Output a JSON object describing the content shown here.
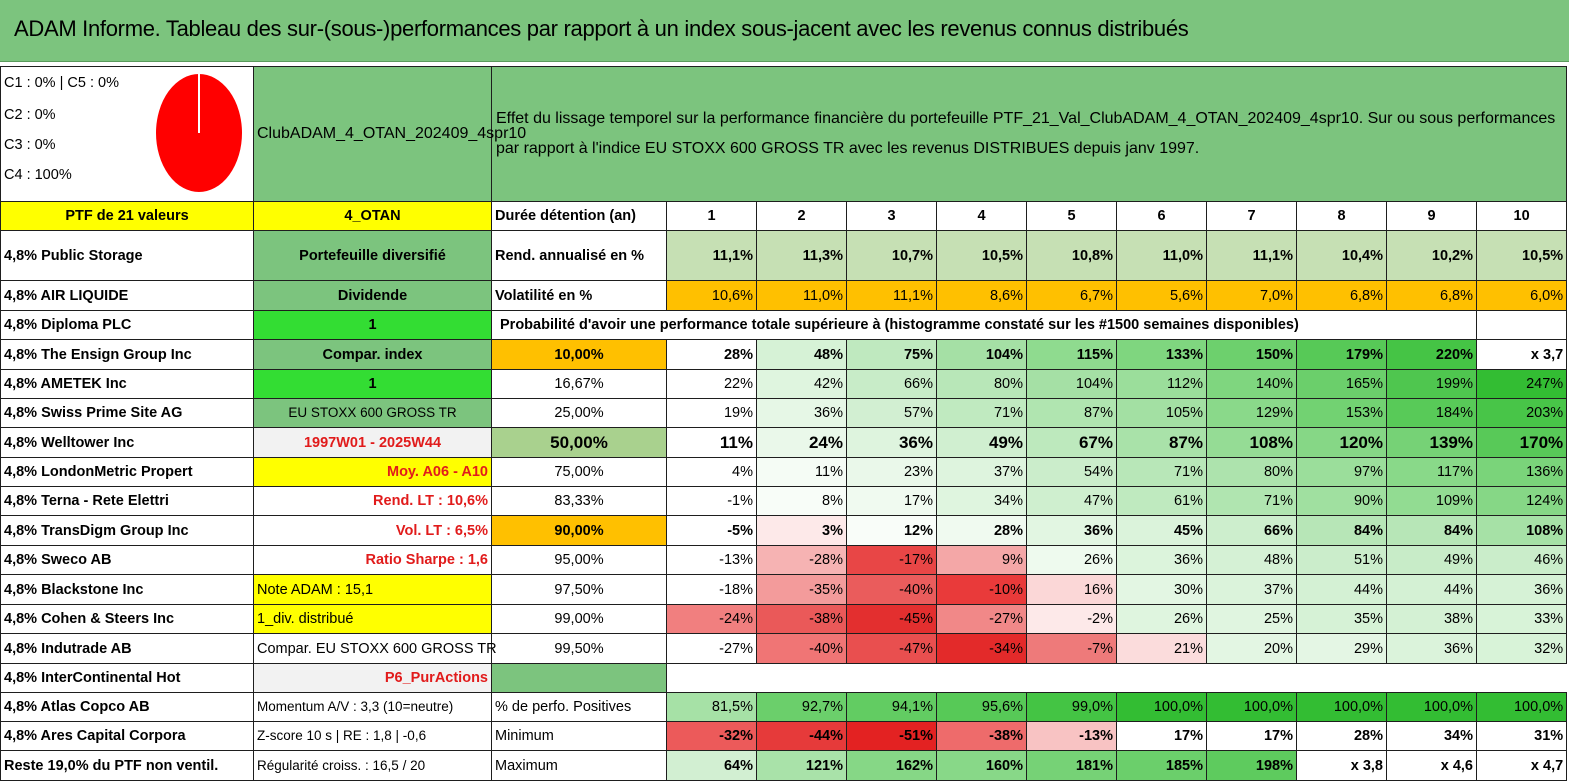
{
  "title": "ADAM Informe. Tableau des sur-(sous-)performances par rapport à un index sous-jacent avec les revenus connus distribués",
  "pie": {
    "legend": [
      "C1 : 0% | C5 : 0%",
      "C2 : 0%",
      "C3 : 0%",
      "C4 : 100%"
    ],
    "colors": {
      "fill": "#ff0000",
      "stroke": "#ffffff"
    }
  },
  "header": {
    "portfolio_name": "ClubADAM_4_OTAN_202409_4spr10",
    "description": "Effet du lissage temporel sur la performance financière du portefeuille PTF_21_Val_ClubADAM_4_OTAN_202409_4spr10. Sur ou sous performances par rapport à l'indice EU STOXX 600 GROSS TR avec les revenus DISTRIBUES depuis janv 1997."
  },
  "holdings": [
    "PTF de 21 valeurs",
    "4,8% Public Storage",
    "4,8% AIR LIQUIDE",
    "4,8% Diploma PLC",
    "4,8% The Ensign Group Inc",
    "4,8% AMETEK Inc",
    "4,8% Swiss Prime Site AG",
    "4,8% Welltower Inc",
    "4,8% LondonMetric Propert",
    "4,8% Terna - Rete Elettri",
    "4,8% TransDigm Group Inc",
    "4,8% Sweco AB",
    "4,8% Blackstone Inc",
    "4,8% Cohen & Steers Inc",
    "4,8% Indutrade AB",
    "4,8% InterContinental Hot",
    "4,8% Atlas Copco AB",
    "4,8% Ares Capital Corpora",
    "Reste 19,0% du PTF non ventil."
  ],
  "info": [
    "4_OTAN",
    "Portefeuille diversifié",
    "Dividende",
    "1",
    "Compar. index",
    "1",
    "EU STOXX 600 GROSS TR",
    "1997W01 - 2025W44",
    "Moy. A06 - A10",
    "Rend. LT : 10,6%",
    "Vol. LT : 6,5%",
    "Ratio Sharpe : 1,6",
    "Note ADAM : 15,1",
    "1_div. distribué",
    "Compar. EU STOXX 600 GROSS TR",
    "P6_PurActions",
    "Momentum A/V : 3,3 (10=neutre)",
    "Z-score 10 s | RE : 1,8 | -0,6",
    "Régularité croiss. : 16,5 / 20"
  ],
  "stats": {
    "duration_label": "Durée détention (an)",
    "years": [
      "1",
      "2",
      "3",
      "4",
      "5",
      "6",
      "7",
      "8",
      "9",
      "10"
    ],
    "rend_label": "Rend. annualisé en %",
    "rend": [
      "11,1%",
      "11,3%",
      "10,7%",
      "10,5%",
      "10,8%",
      "11,0%",
      "11,1%",
      "10,4%",
      "10,2%",
      "10,5%"
    ],
    "vol_label": "Volatilité en %",
    "vol": [
      "10,6%",
      "11,0%",
      "11,1%",
      "8,6%",
      "6,7%",
      "5,6%",
      "7,0%",
      "6,8%",
      "6,8%",
      "6,0%"
    ],
    "prob_title": "Probabilité d'avoir une performance totale supérieure à (histogramme constaté sur les #1500 semaines disponibles)"
  },
  "prob_rows": [
    {
      "label": "10,00%",
      "values": [
        "28%",
        "48%",
        "75%",
        "104%",
        "115%",
        "133%",
        "150%",
        "179%",
        "220%",
        "x 3,7"
      ]
    },
    {
      "label": "16,67%",
      "values": [
        "22%",
        "42%",
        "66%",
        "80%",
        "104%",
        "112%",
        "140%",
        "165%",
        "199%",
        "247%"
      ]
    },
    {
      "label": "25,00%",
      "values": [
        "19%",
        "36%",
        "57%",
        "71%",
        "87%",
        "105%",
        "129%",
        "153%",
        "184%",
        "203%"
      ]
    },
    {
      "label": "50,00%",
      "values": [
        "11%",
        "24%",
        "36%",
        "49%",
        "67%",
        "87%",
        "108%",
        "120%",
        "139%",
        "170%"
      ]
    },
    {
      "label": "75,00%",
      "values": [
        "4%",
        "11%",
        "23%",
        "37%",
        "54%",
        "71%",
        "80%",
        "97%",
        "117%",
        "136%"
      ]
    },
    {
      "label": "83,33%",
      "values": [
        "-1%",
        "8%",
        "17%",
        "34%",
        "47%",
        "61%",
        "71%",
        "90%",
        "109%",
        "124%"
      ]
    },
    {
      "label": "90,00%",
      "values": [
        "-5%",
        "3%",
        "12%",
        "28%",
        "36%",
        "45%",
        "66%",
        "84%",
        "84%",
        "108%"
      ]
    },
    {
      "label": "95,00%",
      "values": [
        "-13%",
        "-28%",
        "-17%",
        "9%",
        "26%",
        "36%",
        "48%",
        "51%",
        "49%",
        "46%"
      ]
    },
    {
      "label": "97,50%",
      "values": [
        "-18%",
        "-35%",
        "-40%",
        "-10%",
        "16%",
        "30%",
        "37%",
        "44%",
        "44%",
        "36%"
      ]
    },
    {
      "label": "99,00%",
      "values": [
        "-24%",
        "-38%",
        "-45%",
        "-27%",
        "-2%",
        "26%",
        "25%",
        "35%",
        "38%",
        "33%"
      ]
    },
    {
      "label": "99,50%",
      "values": [
        "-27%",
        "-40%",
        "-47%",
        "-34%",
        "-7%",
        "21%",
        "20%",
        "29%",
        "36%",
        "32%"
      ]
    }
  ],
  "bottom_rows": [
    {
      "label": "% de perfo. Positives",
      "values": [
        "81,5%",
        "92,7%",
        "94,1%",
        "95,6%",
        "99,0%",
        "100,0%",
        "100,0%",
        "100,0%",
        "100,0%",
        "100,0%"
      ]
    },
    {
      "label": "Minimum",
      "values": [
        "-32%",
        "-44%",
        "-51%",
        "-38%",
        "-13%",
        "17%",
        "17%",
        "28%",
        "34%",
        "31%"
      ]
    },
    {
      "label": "Maximum",
      "values": [
        "64%",
        "121%",
        "162%",
        "160%",
        "181%",
        "185%",
        "198%",
        "x 3,8",
        "x 4,6",
        "x 4,7"
      ]
    }
  ],
  "cell_colors": {
    "prob": [
      [
        "#ffffff",
        "#d6f2d6",
        "#bfe9bf",
        "#a5e0a5",
        "#8fdb8f",
        "#7fd67f",
        "#6dd06d",
        "#57c957",
        "#45c445",
        "#ffffff"
      ],
      [
        "#ffffff",
        "#dff5df",
        "#c8ecc8",
        "#b8e7b8",
        "#a5e0a5",
        "#9bde9b",
        "#7fd67f",
        "#6bcf6b",
        "#4fc64f",
        "#33bd33"
      ],
      [
        "#ffffff",
        "#e6f7e6",
        "#d2efd2",
        "#c0eac0",
        "#b0e5b0",
        "#a3e0a3",
        "#8ad98a",
        "#72d272",
        "#58ca58",
        "#48c548"
      ],
      [
        "#ffffff",
        "#eaf8ea",
        "#def4de",
        "#d0efd0",
        "#bde9bd",
        "#a9e2a9",
        "#95dc95",
        "#86d786",
        "#76d276",
        "#58c958"
      ],
      [
        "#ffffff",
        "#f5fcf5",
        "#eaf8ea",
        "#def4de",
        "#cbedcb",
        "#b8e7b8",
        "#ade3ad",
        "#9bde9b",
        "#89d989",
        "#7ad47a"
      ],
      [
        "#ffffff",
        "#f8fdf8",
        "#f0faf0",
        "#dff5df",
        "#cfefcf",
        "#bfeabf",
        "#b0e5b0",
        "#a0e0a0",
        "#92dc92",
        "#86d786"
      ],
      [
        "#ffffff",
        "#fde9e9",
        "#f9fdf9",
        "#f0faf0",
        "#e2f6e2",
        "#dbf3db",
        "#cdeecd",
        "#b7e6b7",
        "#b7e6b7",
        "#a6e1a6"
      ],
      [
        "#ffffff",
        "#f6b3b3",
        "#e84646",
        "#f4a7a7",
        "#eefaee",
        "#dcf4dc",
        "#d5f1d5",
        "#cbedcb",
        "#c8ecc8",
        "#caedca"
      ],
      [
        "#ffffff",
        "#f39b9b",
        "#ea5c5c",
        "#e93a3a",
        "#fbd7d7",
        "#e3f6e3",
        "#dbf3db",
        "#d4f1d4",
        "#d4f1d4",
        "#d6f2d6"
      ],
      [
        "#ffffff",
        "#f17f7f",
        "#ea5959",
        "#e32f2f",
        "#f18888",
        "#fde9e9",
        "#dff5df",
        "#e0f5e0",
        "#d6f2d6",
        "#d4f1d4",
        "#d8f3d8"
      ],
      [
        "#ffffff",
        "#f07575",
        "#e94f4f",
        "#e32a2a",
        "#ee7a7a",
        "#fbdcdc",
        "#e3f6e3",
        "#e4f6e4",
        "#dbf3db",
        "#d8f3d8"
      ]
    ],
    "bottom": [
      [
        "#ffffff",
        "#a6e1a6",
        "#6bcf6b",
        "#62cc62",
        "#57c957",
        "#44c444",
        "#33bd33",
        "#33bd33",
        "#33bd33",
        "#33bd33",
        "#33bd33"
      ],
      [
        "#ffffff",
        "#ec5a5a",
        "#e63a3a",
        "#e32222",
        "#ee6b6b",
        "#f8c3c3",
        "#ffffff",
        "#ffffff",
        "#ffffff",
        "#ffffff",
        "#ffffff"
      ],
      [
        "#ffffff",
        "#d2efd2",
        "#a9e2a9",
        "#86d786",
        "#88d888",
        "#76d276",
        "#6bcf6b",
        "#5ecb5e",
        "#ffffff",
        "#ffffff",
        "#ffffff"
      ]
    ],
    "rend": [
      "#c6e0b4",
      "#c6e0b4",
      "#c6e0b4",
      "#c6e0b4",
      "#c6e0b4",
      "#c6e0b4",
      "#c6e0b4",
      "#c6e0b4",
      "#c6e0b4",
      "#c6e0b4"
    ],
    "vol": [
      "#ffc000",
      "#ffc000",
      "#ffc000",
      "#ffc000",
      "#ffc000",
      "#ffc000",
      "#ffc000",
      "#ffc000",
      "#ffc000",
      "#ffc000"
    ]
  }
}
